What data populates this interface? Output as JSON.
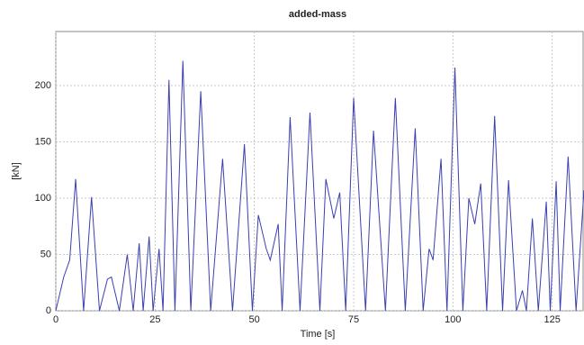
{
  "chart_data": {
    "type": "line",
    "title": "added-mass",
    "xlabel": "Time [s]",
    "ylabel": "[kN]",
    "x": [
      0,
      2,
      3.5,
      5,
      7,
      9,
      11,
      13,
      14,
      16,
      18,
      19.5,
      21,
      22,
      23.5,
      24.5,
      26,
      27,
      28.5,
      30,
      32,
      34,
      36.5,
      39,
      42,
      44.5,
      47.5,
      49.5,
      51,
      53,
      54,
      56,
      57,
      59,
      61.5,
      64,
      66.5,
      68,
      70,
      71.5,
      73,
      75,
      78,
      80,
      83,
      85.5,
      88,
      90.5,
      92.5,
      94,
      95,
      97,
      98.5,
      100.5,
      102.5,
      104,
      105.5,
      107,
      108.5,
      110.5,
      112.5,
      114,
      116,
      117.5,
      118.5,
      120,
      121.5,
      123.5,
      124.5,
      126,
      127,
      129,
      131,
      133
    ],
    "series": [
      {
        "name": "added-mass",
        "color": "#3a3fb0",
        "values": [
          0,
          30,
          45,
          117,
          0,
          101,
          0,
          28,
          30,
          0,
          50,
          0,
          60,
          0,
          66,
          0,
          55,
          0,
          205,
          0,
          222,
          0,
          195,
          0,
          135,
          0,
          148,
          0,
          85,
          55,
          45,
          77,
          0,
          172,
          0,
          176,
          0,
          117,
          82,
          105,
          0,
          189,
          0,
          160,
          0,
          189,
          0,
          162,
          0,
          55,
          45,
          135,
          0,
          216,
          0,
          100,
          77,
          113,
          0,
          173,
          0,
          116,
          0,
          18,
          0,
          82,
          0,
          97,
          0,
          115,
          0,
          137,
          0,
          107
        ]
      }
    ],
    "xlim": [
      0,
      133
    ],
    "ylim": [
      0,
      248
    ],
    "xticks": [
      0,
      25,
      50,
      75,
      100,
      125
    ],
    "yticks": [
      0,
      50,
      100,
      150,
      200
    ],
    "grid": true
  }
}
